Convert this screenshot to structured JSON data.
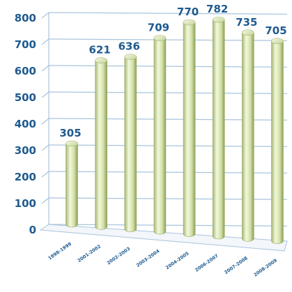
{
  "chart_data": {
    "type": "bar",
    "categories": [
      "1998-1999",
      "2001-2002",
      "2002-2003",
      "2003-2004",
      "2004-2005",
      "2006-2007",
      "2007-2008",
      "2008-2009"
    ],
    "values": [
      305,
      621,
      636,
      709,
      770,
      782,
      735,
      705
    ],
    "data_labels": [
      "305",
      "621",
      "636",
      "709",
      "770",
      "782",
      "735",
      "705"
    ],
    "ylim": [
      0,
      800
    ],
    "y_ticks": [
      "0",
      "100",
      "200",
      "300",
      "400",
      "500",
      "600",
      "700",
      "800"
    ],
    "grid": true,
    "bar_style": "3d-cylinder",
    "colors": {
      "bar_light": "#eef4d6",
      "bar_mid": "#c9d99a",
      "bar_dark": "#8fa35c",
      "grid": "#a9c4dc",
      "labels": "#1f5a8f"
    }
  }
}
